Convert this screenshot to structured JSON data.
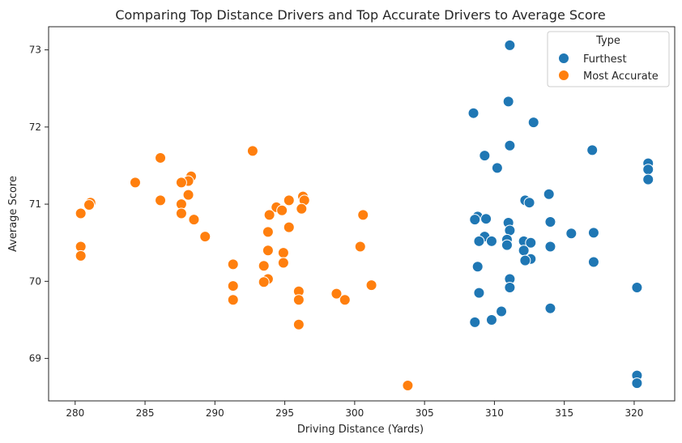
{
  "chart_data": {
    "type": "scatter",
    "title": "Comparing Top Distance Drivers and Top Accurate Drivers to Average Score",
    "xlabel": "Driving Distance (Yards)",
    "ylabel": "Average Score",
    "xlim": [
      278.1,
      322.9
    ],
    "ylim": [
      68.45,
      73.3
    ],
    "xticks": [
      280,
      285,
      290,
      295,
      300,
      305,
      310,
      315,
      320
    ],
    "yticks": [
      69,
      70,
      71,
      72,
      73
    ],
    "grid": false,
    "legend": {
      "title": "Type",
      "placement": "top-right"
    },
    "series": [
      {
        "name": "Furthest",
        "color": "#1f77b4",
        "points": [
          [
            311.1,
            73.06
          ],
          [
            311.0,
            72.33
          ],
          [
            312.8,
            72.06
          ],
          [
            308.5,
            72.18
          ],
          [
            311.1,
            71.76
          ],
          [
            309.3,
            71.63
          ],
          [
            310.2,
            71.47
          ],
          [
            317.0,
            71.7
          ],
          [
            321.0,
            71.53
          ],
          [
            321.0,
            71.45
          ],
          [
            321.0,
            71.32
          ],
          [
            313.9,
            71.13
          ],
          [
            312.2,
            71.05
          ],
          [
            312.5,
            71.02
          ],
          [
            308.8,
            70.84
          ],
          [
            308.6,
            70.8
          ],
          [
            309.4,
            70.81
          ],
          [
            311.0,
            70.76
          ],
          [
            314.0,
            70.77
          ],
          [
            311.1,
            70.66
          ],
          [
            315.5,
            70.62
          ],
          [
            317.1,
            70.63
          ],
          [
            309.3,
            70.58
          ],
          [
            308.9,
            70.52
          ],
          [
            309.8,
            70.52
          ],
          [
            310.9,
            70.54
          ],
          [
            312.1,
            70.52
          ],
          [
            312.6,
            70.5
          ],
          [
            310.9,
            70.47
          ],
          [
            314.0,
            70.45
          ],
          [
            312.1,
            70.4
          ],
          [
            312.6,
            70.29
          ],
          [
            312.2,
            70.27
          ],
          [
            317.1,
            70.25
          ],
          [
            308.8,
            70.19
          ],
          [
            311.1,
            70.03
          ],
          [
            311.1,
            69.92
          ],
          [
            320.2,
            69.92
          ],
          [
            308.9,
            69.85
          ],
          [
            310.5,
            69.61
          ],
          [
            314.0,
            69.65
          ],
          [
            309.8,
            69.5
          ],
          [
            308.6,
            69.47
          ],
          [
            320.2,
            68.78
          ],
          [
            320.2,
            68.68
          ]
        ]
      },
      {
        "name": "Most Accurate",
        "color": "#ff7f0e",
        "points": [
          [
            292.7,
            71.69
          ],
          [
            286.1,
            71.6
          ],
          [
            288.3,
            71.36
          ],
          [
            288.1,
            71.3
          ],
          [
            284.3,
            71.28
          ],
          [
            287.6,
            71.28
          ],
          [
            288.1,
            71.12
          ],
          [
            296.3,
            71.1
          ],
          [
            286.1,
            71.05
          ],
          [
            295.3,
            71.05
          ],
          [
            296.4,
            71.05
          ],
          [
            281.1,
            71.02
          ],
          [
            281.0,
            70.99
          ],
          [
            287.6,
            71.0
          ],
          [
            294.4,
            70.96
          ],
          [
            294.8,
            70.92
          ],
          [
            296.2,
            70.94
          ],
          [
            280.4,
            70.88
          ],
          [
            287.6,
            70.88
          ],
          [
            293.9,
            70.86
          ],
          [
            300.6,
            70.86
          ],
          [
            288.5,
            70.8
          ],
          [
            295.3,
            70.7
          ],
          [
            293.8,
            70.64
          ],
          [
            289.3,
            70.58
          ],
          [
            280.4,
            70.45
          ],
          [
            300.4,
            70.45
          ],
          [
            293.8,
            70.4
          ],
          [
            294.9,
            70.37
          ],
          [
            280.4,
            70.33
          ],
          [
            294.9,
            70.24
          ],
          [
            291.3,
            70.22
          ],
          [
            293.5,
            70.2
          ],
          [
            293.8,
            70.03
          ],
          [
            293.5,
            69.99
          ],
          [
            291.3,
            69.94
          ],
          [
            301.2,
            69.95
          ],
          [
            296.0,
            69.87
          ],
          [
            298.7,
            69.84
          ],
          [
            291.3,
            69.76
          ],
          [
            296.0,
            69.76
          ],
          [
            299.3,
            69.76
          ],
          [
            296.0,
            69.44
          ],
          [
            303.8,
            68.65
          ]
        ]
      }
    ]
  }
}
